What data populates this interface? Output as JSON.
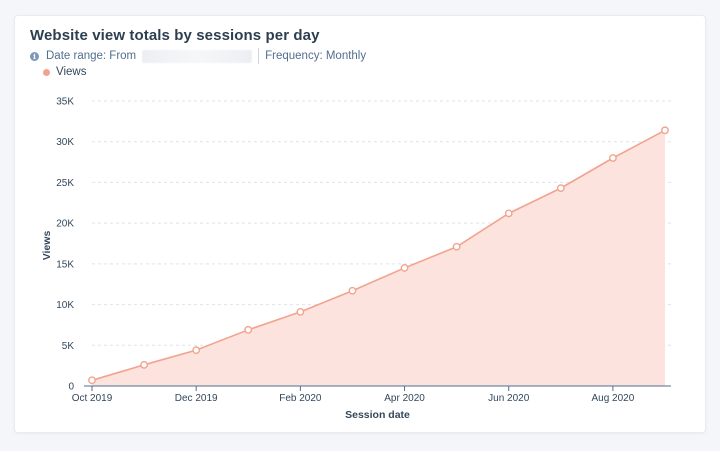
{
  "card": {
    "title": "Website view totals by sessions per day",
    "date_range_label": "Date range: From",
    "frequency_label": "Frequency: Monthly",
    "info_icon": "info-icon"
  },
  "colors": {
    "line": "#f2a38f",
    "area": "#fde3dd",
    "grid": "#dfe3eb",
    "axis": "#516f90"
  },
  "chart_data": {
    "type": "area",
    "x": [
      "Oct 2019",
      "Nov 2019",
      "Dec 2019",
      "Jan 2020",
      "Feb 2020",
      "Mar 2020",
      "Apr 2020",
      "May 2020",
      "Jun 2020",
      "Jul 2020",
      "Aug 2020",
      "Sep 2020"
    ],
    "x_tick_labels": [
      "Oct 2019",
      "Dec 2019",
      "Feb 2020",
      "Apr 2020",
      "Jun 2020",
      "Aug 2020"
    ],
    "series": [
      {
        "name": "Views",
        "values": [
          700,
          2600,
          4400,
          6900,
          9100,
          11700,
          14500,
          17100,
          21200,
          24300,
          28000,
          31400
        ]
      }
    ],
    "xlabel": "Session date",
    "ylabel": "Views",
    "ylim": [
      0,
      35000
    ],
    "y_ticks": [
      0,
      5000,
      10000,
      15000,
      20000,
      25000,
      30000,
      35000
    ],
    "y_tick_labels": [
      "0",
      "5K",
      "10K",
      "15K",
      "20K",
      "25K",
      "30K",
      "35K"
    ],
    "grid": true,
    "legend_position": "top-left"
  }
}
